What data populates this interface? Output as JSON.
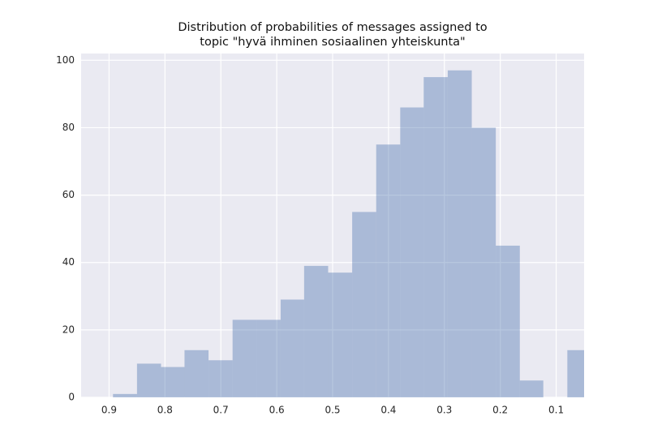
{
  "chart_data": {
    "type": "histogram",
    "title": [
      "Distribution of probabilities of messages assigned to",
      "topic \"hyvä ihminen sosiaalinen yhteiskunta\""
    ],
    "bins": [
      0.893,
      0.85,
      0.807,
      0.765,
      0.722,
      0.679,
      0.636,
      0.593,
      0.551,
      0.508,
      0.465,
      0.422,
      0.379,
      0.337,
      0.294,
      0.251,
      0.208,
      0.165,
      0.123,
      0.08,
      0.037
    ],
    "values": [
      1,
      10,
      9,
      14,
      11,
      23,
      23,
      29,
      39,
      37,
      55,
      75,
      86,
      95,
      97,
      80,
      45,
      5,
      0,
      14
    ],
    "color": "#4c72b0",
    "opacity": 0.4,
    "xlim": [
      0.95,
      0.05
    ],
    "xticks": [
      0.9,
      0.8,
      0.7,
      0.6,
      0.5,
      0.4,
      0.3,
      0.2,
      0.1
    ],
    "ylim": [
      0,
      102
    ],
    "yticks": [
      0,
      20,
      40,
      60,
      80,
      100
    ],
    "grid": true
  }
}
